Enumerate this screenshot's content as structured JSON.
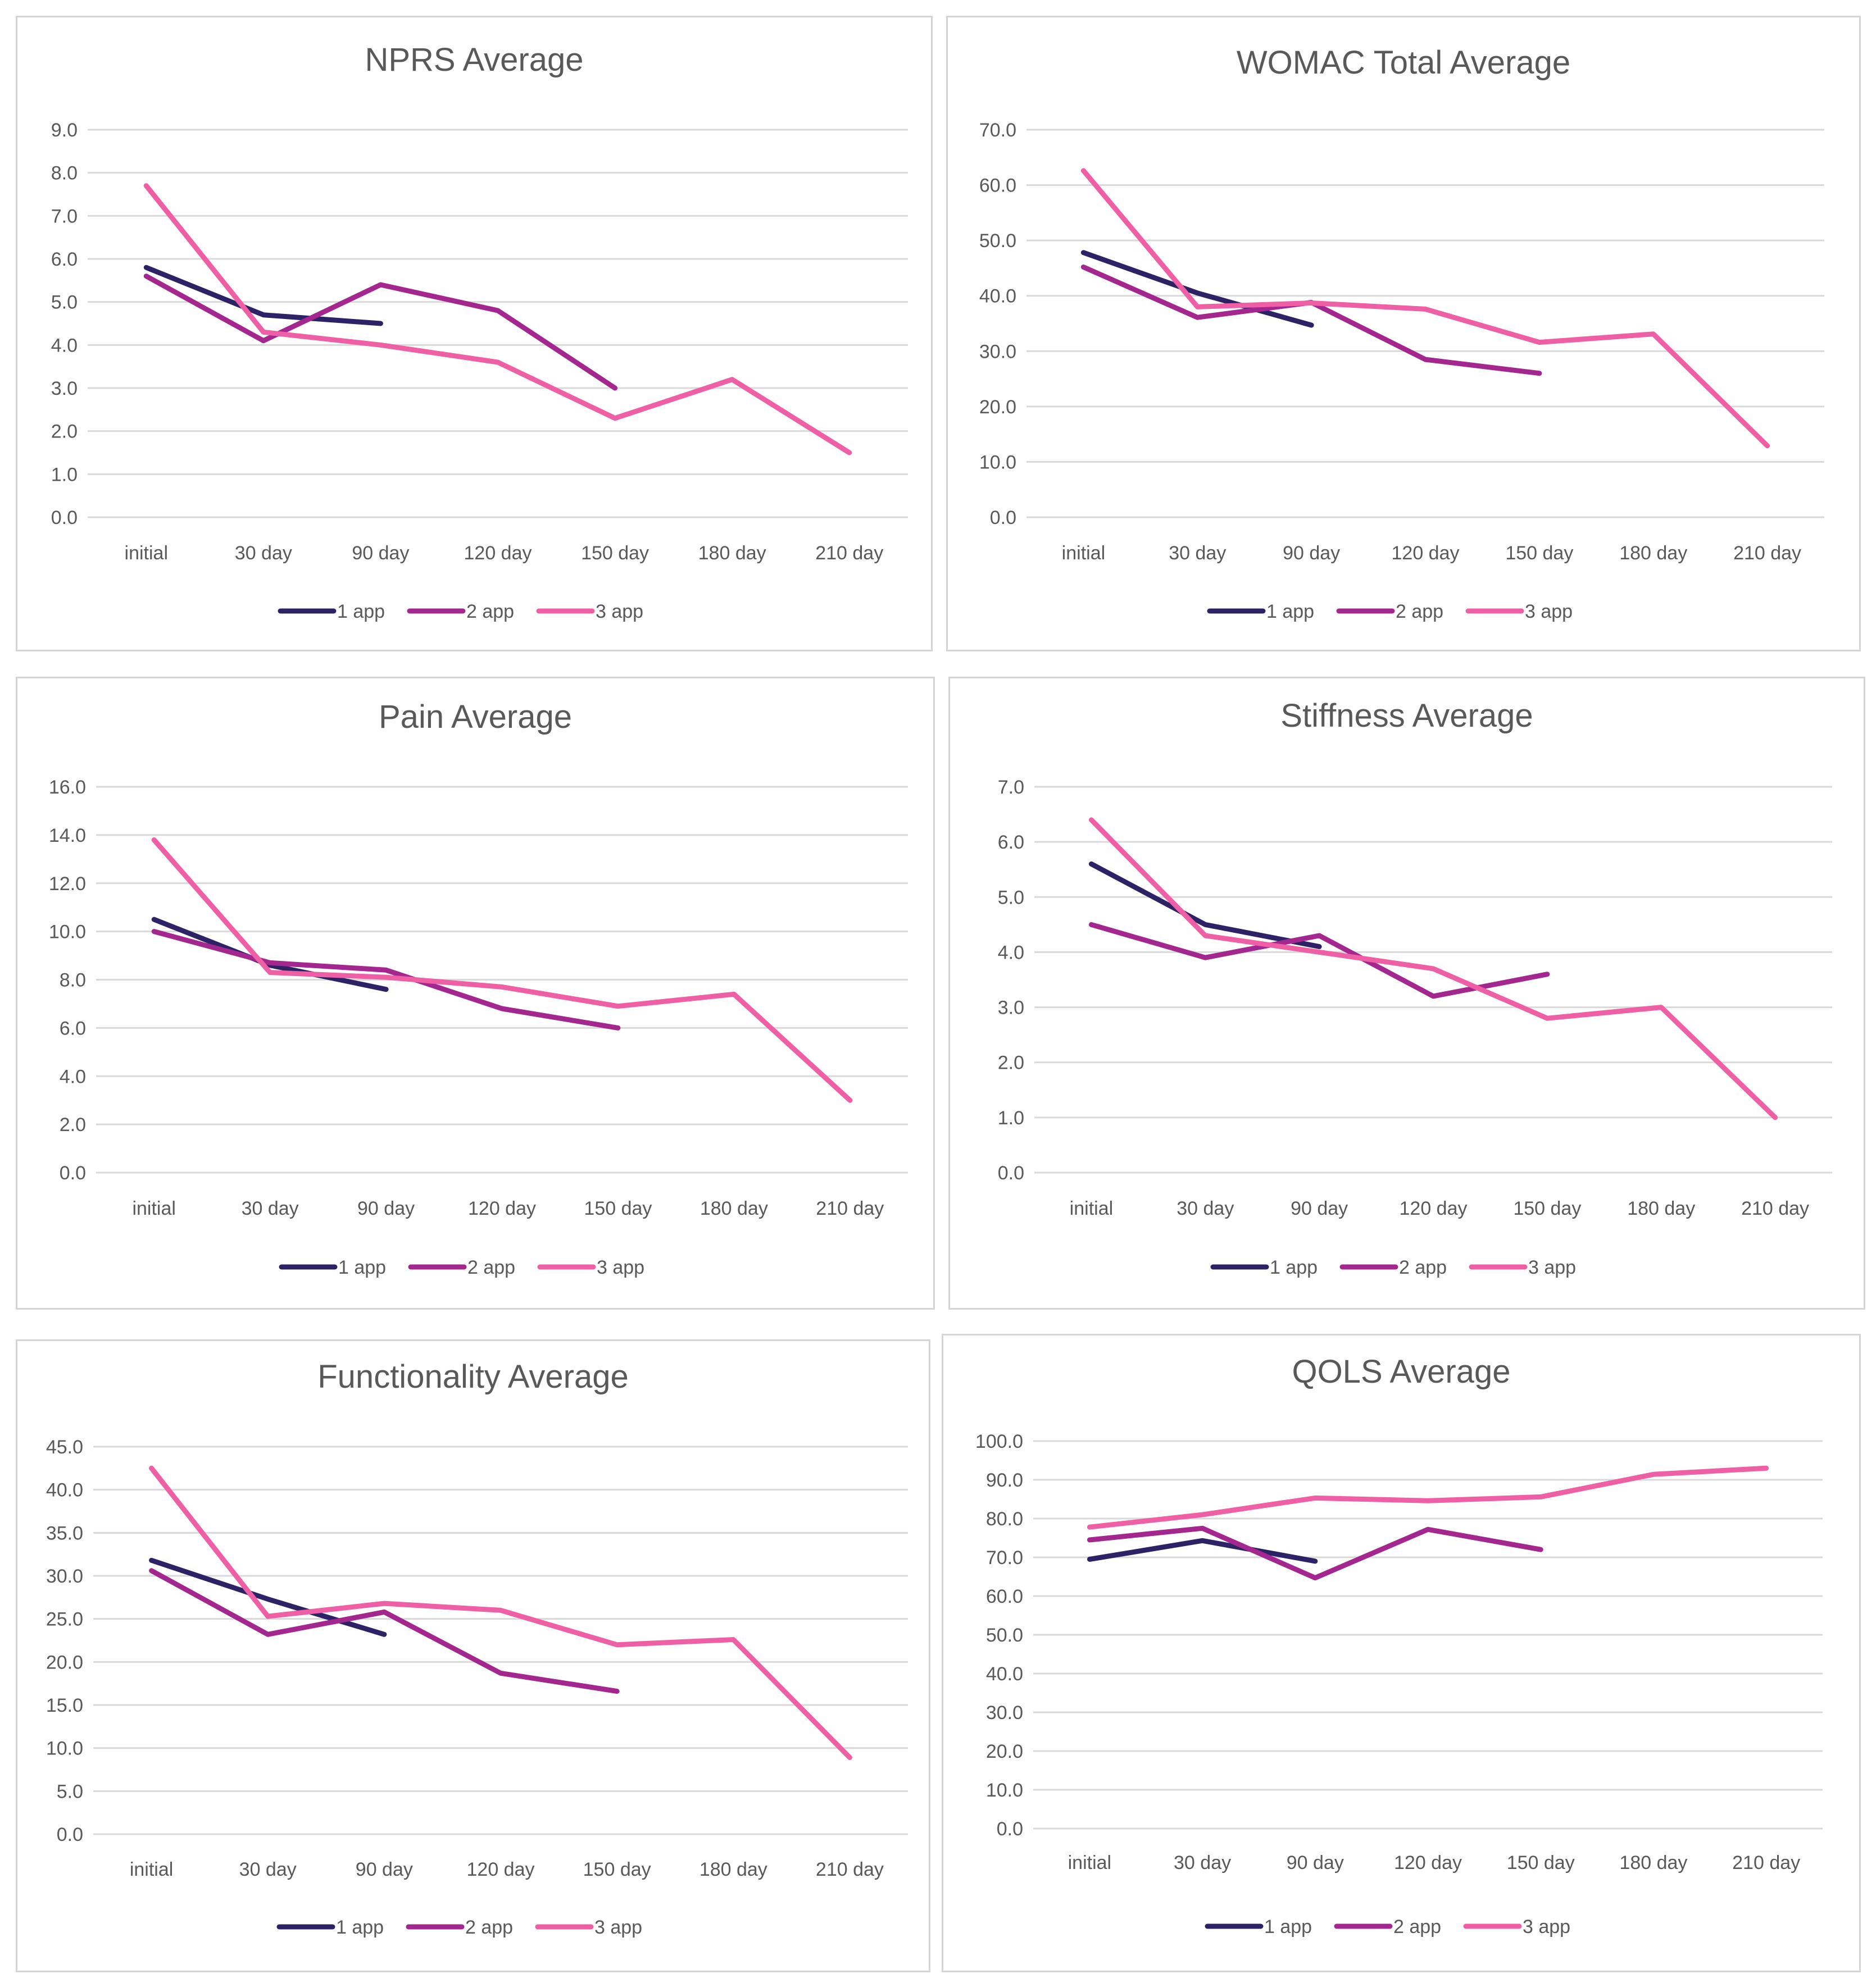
{
  "colors": {
    "1 app": "#2e2266",
    "2 app": "#a3278f",
    "3 app": "#ee5fa5"
  },
  "chart_data": [
    {
      "type": "line",
      "title": "NPRS Average",
      "categories": [
        "initial",
        "30 day",
        "90 day",
        "120 day",
        "150 day",
        "180 day",
        "210 day"
      ],
      "ylim": [
        0,
        9
      ],
      "yticks": [
        "0.0",
        "1.0",
        "2.0",
        "3.0",
        "4.0",
        "5.0",
        "6.0",
        "7.0",
        "8.0",
        "9.0"
      ],
      "legend": "bottom",
      "grid": true,
      "series": [
        {
          "name": "1 app",
          "values": [
            5.8,
            4.7,
            4.5,
            null,
            null,
            null,
            null
          ]
        },
        {
          "name": "2 app",
          "values": [
            5.6,
            4.1,
            5.4,
            4.8,
            3.0,
            null,
            null
          ]
        },
        {
          "name": "3 app",
          "values": [
            7.7,
            4.3,
            4.0,
            3.6,
            2.3,
            3.2,
            1.5
          ]
        }
      ]
    },
    {
      "type": "line",
      "title": "WOMAC Total Average",
      "categories": [
        "initial",
        "30 day",
        "90 day",
        "120 day",
        "150 day",
        "180 day",
        "210 day"
      ],
      "ylim": [
        0,
        70
      ],
      "yticks": [
        "0.0",
        "10.0",
        "20.0",
        "30.0",
        "40.0",
        "50.0",
        "60.0",
        "70.0"
      ],
      "legend": "bottom",
      "grid": true,
      "series": [
        {
          "name": "1 app",
          "values": [
            47.8,
            40.5,
            34.7,
            null,
            null,
            null,
            null
          ]
        },
        {
          "name": "2 app",
          "values": [
            45.2,
            36.1,
            38.8,
            28.5,
            26.0,
            null,
            null
          ]
        },
        {
          "name": "3 app",
          "values": [
            62.6,
            38.0,
            38.7,
            37.6,
            31.6,
            33.1,
            12.9
          ]
        }
      ]
    },
    {
      "type": "line",
      "title": "Pain Average",
      "categories": [
        "initial",
        "30 day",
        "90 day",
        "120 day",
        "150 day",
        "180 day",
        "210 day"
      ],
      "ylim": [
        0,
        16
      ],
      "yticks": [
        "0.0",
        "2.0",
        "4.0",
        "6.0",
        "8.0",
        "10.0",
        "12.0",
        "14.0",
        "16.0"
      ],
      "legend": "bottom",
      "grid": true,
      "series": [
        {
          "name": "1 app",
          "values": [
            10.5,
            8.6,
            7.6,
            null,
            null,
            null,
            null
          ]
        },
        {
          "name": "2 app",
          "values": [
            10.0,
            8.7,
            8.4,
            6.8,
            6.0,
            null,
            null
          ]
        },
        {
          "name": "3 app",
          "values": [
            13.8,
            8.3,
            8.1,
            7.7,
            6.9,
            7.4,
            3.0
          ]
        }
      ]
    },
    {
      "type": "line",
      "title": "Stiffness Average",
      "categories": [
        "initial",
        "30 day",
        "90 day",
        "120 day",
        "150 day",
        "180 day",
        "210 day"
      ],
      "ylim": [
        0,
        7
      ],
      "yticks": [
        "0.0",
        "1.0",
        "2.0",
        "3.0",
        "4.0",
        "5.0",
        "6.0",
        "7.0"
      ],
      "legend": "bottom",
      "grid": true,
      "series": [
        {
          "name": "1 app",
          "values": [
            5.6,
            4.5,
            4.1,
            null,
            null,
            null,
            null
          ]
        },
        {
          "name": "2 app",
          "values": [
            4.5,
            3.9,
            4.3,
            3.2,
            3.6,
            null,
            null
          ]
        },
        {
          "name": "3 app",
          "values": [
            6.4,
            4.3,
            4.0,
            3.7,
            2.8,
            3.0,
            1.0
          ]
        }
      ]
    },
    {
      "type": "line",
      "title": "Functionality Average",
      "categories": [
        "initial",
        "30 day",
        "90 day",
        "120 day",
        "150 day",
        "180 day",
        "210 day"
      ],
      "ylim": [
        0,
        45
      ],
      "yticks": [
        "0.0",
        "5.0",
        "10.0",
        "15.0",
        "20.0",
        "25.0",
        "30.0",
        "35.0",
        "40.0",
        "45.0"
      ],
      "legend": "bottom",
      "grid": true,
      "series": [
        {
          "name": "1 app",
          "values": [
            31.8,
            27.3,
            23.2,
            null,
            null,
            null,
            null
          ]
        },
        {
          "name": "2 app",
          "values": [
            30.6,
            23.2,
            25.8,
            18.7,
            16.6,
            null,
            null
          ]
        },
        {
          "name": "3 app",
          "values": [
            42.5,
            25.3,
            26.8,
            26.0,
            22.0,
            22.6,
            8.9
          ]
        }
      ]
    },
    {
      "type": "line",
      "title": "QOLS Average",
      "categories": [
        "initial",
        "30 day",
        "90 day",
        "120 day",
        "150 day",
        "180 day",
        "210 day"
      ],
      "ylim": [
        0,
        100
      ],
      "yticks": [
        "0.0",
        "10.0",
        "20.0",
        "30.0",
        "40.0",
        "50.0",
        "60.0",
        "70.0",
        "80.0",
        "90.0",
        "100.0"
      ],
      "legend": "bottom",
      "grid": true,
      "series": [
        {
          "name": "1 app",
          "values": [
            69.5,
            74.3,
            69.0,
            null,
            null,
            null,
            null
          ]
        },
        {
          "name": "2 app",
          "values": [
            74.5,
            77.5,
            64.7,
            77.2,
            72.0,
            null,
            null
          ]
        },
        {
          "name": "3 app",
          "values": [
            77.8,
            81.0,
            85.3,
            84.6,
            85.6,
            91.4,
            93.0
          ]
        }
      ]
    }
  ]
}
